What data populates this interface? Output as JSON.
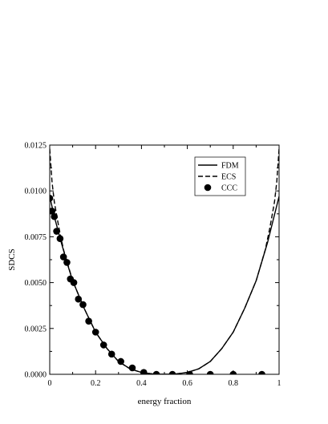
{
  "chart_data": {
    "type": "line",
    "title": "",
    "xlabel": "energy fraction",
    "ylabel": "SDCS",
    "xlim": [
      0,
      1
    ],
    "ylim": [
      0,
      0.0125
    ],
    "x_ticks": [
      0,
      0.2,
      0.4,
      0.6,
      0.8,
      1
    ],
    "x_tick_labels": [
      "0",
      "0.2",
      "0.4",
      "0.6",
      "0.8",
      "1"
    ],
    "y_ticks": [
      0,
      0.0025,
      0.005,
      0.0075,
      0.01,
      0.0125
    ],
    "y_tick_labels": [
      "0.0000",
      "0.0025",
      "0.0050",
      "0.0075",
      "0.0100",
      "0.0125"
    ],
    "legend_position": "top-right",
    "series": [
      {
        "name": "FDM",
        "style": "solid",
        "x": [
          0.0,
          0.02,
          0.05,
          0.08,
          0.1,
          0.15,
          0.2,
          0.25,
          0.3,
          0.35,
          0.4,
          0.45,
          0.5,
          0.55,
          0.6,
          0.65,
          0.7,
          0.75,
          0.8,
          0.85,
          0.9,
          0.95,
          1.0
        ],
        "y": [
          0.0097,
          0.0086,
          0.0072,
          0.0059,
          0.0051,
          0.0036,
          0.0023,
          0.0014,
          0.0007,
          0.0003,
          0.0001,
          2e-05,
          0.0,
          2e-05,
          0.0001,
          0.0003,
          0.0007,
          0.0014,
          0.0023,
          0.0036,
          0.0051,
          0.0072,
          0.0097
        ]
      },
      {
        "name": "ECS",
        "style": "dashed",
        "x": [
          0.0,
          0.01,
          0.02,
          0.04,
          0.06,
          0.1,
          0.15,
          0.2,
          0.25,
          0.3,
          0.35,
          0.4,
          0.45,
          0.5,
          0.55,
          0.6,
          0.65,
          0.7,
          0.75,
          0.8,
          0.85,
          0.9,
          0.94,
          0.96,
          0.98,
          0.99,
          1.0
        ],
        "y": [
          0.0123,
          0.0105,
          0.0094,
          0.008,
          0.0068,
          0.0051,
          0.0036,
          0.0023,
          0.0014,
          0.0007,
          0.0003,
          0.0001,
          2e-05,
          0.0,
          2e-05,
          0.0001,
          0.0003,
          0.0007,
          0.0014,
          0.0023,
          0.0036,
          0.0051,
          0.0068,
          0.008,
          0.0094,
          0.0105,
          0.0123
        ]
      },
      {
        "name": "CCC",
        "style": "markers",
        "x": [
          0.0,
          0.01,
          0.02,
          0.03,
          0.045,
          0.06,
          0.075,
          0.09,
          0.105,
          0.125,
          0.145,
          0.17,
          0.2,
          0.235,
          0.27,
          0.31,
          0.36,
          0.41,
          0.465,
          0.535,
          0.61,
          0.7,
          0.8,
          0.925
        ],
        "y": [
          0.0096,
          0.0089,
          0.0086,
          0.0078,
          0.0074,
          0.0064,
          0.0061,
          0.0052,
          0.005,
          0.0041,
          0.0038,
          0.0029,
          0.0023,
          0.0016,
          0.0011,
          0.0007,
          0.00035,
          0.0001,
          0.0,
          0.0,
          0.0,
          0.0,
          0.0,
          0.0
        ]
      }
    ]
  }
}
